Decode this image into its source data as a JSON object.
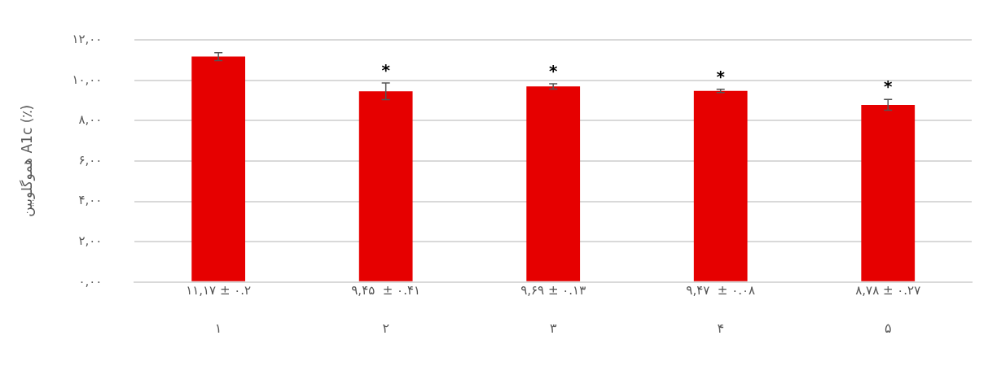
{
  "chart_data": {
    "type": "bar",
    "ylabel": "هموگلوبین A1c (٪)",
    "categories": [
      "۱",
      "۲",
      "۳",
      "۴",
      "۵"
    ],
    "values": [
      11.17,
      9.45,
      9.69,
      9.47,
      8.78
    ],
    "errors": [
      0.2,
      0.41,
      0.13,
      0.08,
      0.27
    ],
    "value_labels": [
      "۱۱,۱۷ ± ۰.۲",
      "۹,۴۵  ± ۰.۴۱",
      "۹,۶۹ ± ۰.۱۳",
      "۹,۴۷  ± ۰.۰۸",
      "۸,۷۸ ± ۰.۲۷"
    ],
    "color": "#e60000",
    "ylim": [
      0,
      12
    ],
    "yticks": [
      {
        "value": 0,
        "label": "۰,۰۰"
      },
      {
        "value": 2,
        "label": "۲,۰۰"
      },
      {
        "value": 4,
        "label": "۴,۰۰"
      },
      {
        "value": 6,
        "label": "۶,۰۰"
      },
      {
        "value": 8,
        "label": "۸,۰۰"
      },
      {
        "value": 10,
        "label": "۱۰,۰۰"
      },
      {
        "value": 12,
        "label": "۱۲,۰۰"
      }
    ],
    "grid": "y",
    "legend": false,
    "annotations": [
      {
        "text": "*",
        "x": "۲",
        "y": 9.86
      },
      {
        "text": "*",
        "x": "۳",
        "y": 9.82
      },
      {
        "text": "*",
        "x": "۴",
        "y": 9.55
      },
      {
        "text": "*",
        "x": "۵",
        "y": 9.05
      }
    ]
  }
}
